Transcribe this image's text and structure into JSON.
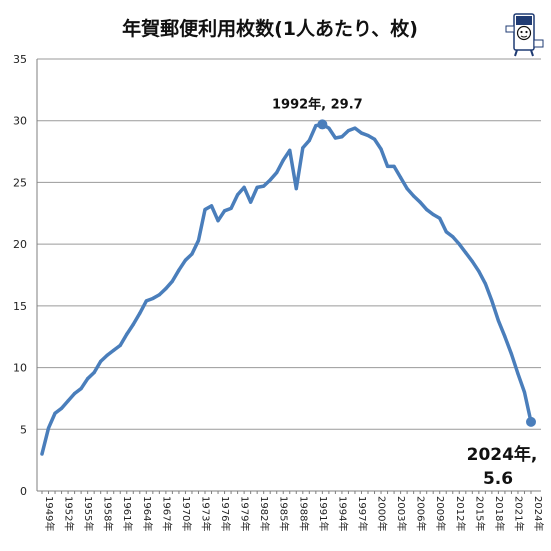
{
  "chart_data": {
    "type": "line",
    "title": "年賀郵便利用枚数(1人あたり、枚)",
    "xlabel": "",
    "ylabel": "",
    "ylim": [
      0,
      35
    ],
    "yticks": [
      0,
      5,
      10,
      15,
      20,
      25,
      30,
      35
    ],
    "grid": "horizontal",
    "legend": "none",
    "line_color": "#4a7ebb",
    "x": [
      1949,
      1950,
      1951,
      1952,
      1953,
      1954,
      1955,
      1956,
      1957,
      1958,
      1959,
      1960,
      1961,
      1962,
      1963,
      1964,
      1965,
      1966,
      1967,
      1968,
      1969,
      1970,
      1971,
      1972,
      1973,
      1974,
      1975,
      1976,
      1977,
      1978,
      1979,
      1980,
      1981,
      1982,
      1983,
      1984,
      1985,
      1986,
      1987,
      1988,
      1989,
      1990,
      1991,
      1992,
      1993,
      1994,
      1995,
      1996,
      1997,
      1998,
      1999,
      2000,
      2001,
      2002,
      2003,
      2004,
      2005,
      2006,
      2007,
      2008,
      2009,
      2010,
      2011,
      2012,
      2013,
      2014,
      2015,
      2016,
      2017,
      2018,
      2019,
      2020,
      2021,
      2022,
      2023,
      2024
    ],
    "xtick_labels": [
      "1949年",
      "1952年",
      "1955年",
      "1958年",
      "1961年",
      "1964年",
      "1967年",
      "1970年",
      "1973年",
      "1976年",
      "1979年",
      "1982年",
      "1985年",
      "1988年",
      "1991年",
      "1994年",
      "1997年",
      "2000年",
      "2003年",
      "2006年",
      "2009年",
      "2012年",
      "2015年",
      "2018年",
      "2021年",
      "2024年"
    ],
    "series": [
      {
        "values": [
          3.0,
          5.1,
          6.3,
          6.7,
          7.3,
          7.9,
          8.3,
          9.1,
          9.6,
          10.5,
          11.0,
          11.4,
          11.8,
          12.7,
          13.5,
          14.4,
          15.4,
          15.6,
          15.9,
          16.4,
          17.0,
          17.9,
          18.7,
          19.2,
          20.3,
          22.8,
          23.1,
          21.9,
          22.7,
          22.9,
          24.0,
          24.6,
          23.4,
          24.6,
          24.7,
          25.2,
          25.8,
          26.8,
          27.6,
          24.5,
          27.8,
          28.4,
          29.6,
          29.7,
          29.4,
          28.6,
          28.7,
          29.2,
          29.4,
          29.0,
          28.8,
          28.5,
          27.7,
          26.3,
          26.3,
          25.4,
          24.5,
          23.9,
          23.4,
          22.8,
          22.4,
          22.1,
          21.0,
          20.6,
          20.0,
          19.3,
          18.6,
          17.8,
          16.8,
          15.4,
          13.8,
          12.5,
          11.1,
          9.5,
          8.0,
          5.6
        ]
      }
    ],
    "annotations": [
      {
        "text": "1992年, 29.7",
        "x": 1992,
        "y": 29.7
      },
      {
        "text_line1": "2024年,",
        "text_line2": "5.6",
        "x": 2024,
        "y": 5.6
      }
    ]
  }
}
